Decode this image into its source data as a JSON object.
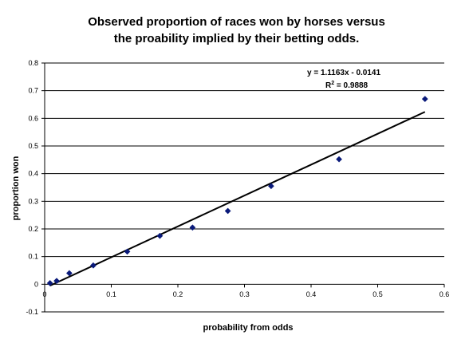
{
  "chart_data": {
    "type": "scatter",
    "title_line1": "Observed proportion of races won by horses versus",
    "title_line2": "the proability implied by their betting odds.",
    "xlabel": "probability from odds",
    "ylabel": "proportion won",
    "xlim": [
      0,
      0.6
    ],
    "ylim": [
      -0.1,
      0.8
    ],
    "x_ticks": [
      "0",
      "0.1",
      "0.2",
      "0.3",
      "0.4",
      "0.5",
      "0.6"
    ],
    "y_ticks": [
      "-0.1",
      "0",
      "0.1",
      "0.2",
      "0.3",
      "0.4",
      "0.5",
      "0.6",
      "0.7",
      "0.8"
    ],
    "grid": "horizontal",
    "marker_color": "#0a1a7a",
    "points": [
      {
        "x": 0.008,
        "y": 0.004
      },
      {
        "x": 0.018,
        "y": 0.012
      },
      {
        "x": 0.037,
        "y": 0.04
      },
      {
        "x": 0.073,
        "y": 0.068
      },
      {
        "x": 0.124,
        "y": 0.118
      },
      {
        "x": 0.173,
        "y": 0.175
      },
      {
        "x": 0.222,
        "y": 0.205
      },
      {
        "x": 0.275,
        "y": 0.265
      },
      {
        "x": 0.34,
        "y": 0.355
      },
      {
        "x": 0.442,
        "y": 0.452
      },
      {
        "x": 0.571,
        "y": 0.67
      }
    ],
    "trendline": {
      "slope": 1.1163,
      "intercept": -0.0141,
      "x_range": [
        0.008,
        0.571
      ]
    },
    "equation_text": "y = 1.1163x - 0.0141",
    "r2_prefix": "R",
    "r2_sup": "2",
    "r2_value": " = 0.9888"
  }
}
